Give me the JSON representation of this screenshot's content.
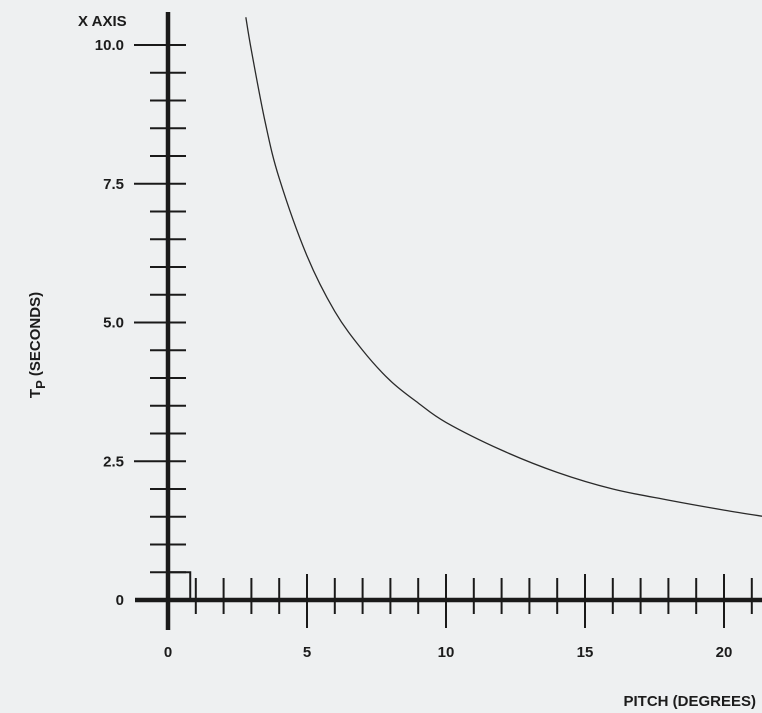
{
  "chart_data": {
    "type": "line",
    "corner_label": "X AXIS",
    "xlabel": "PITCH (DEGREES)",
    "ylabel_main": "T",
    "ylabel_sub": "P",
    "ylabel_rest": " (SECONDS)",
    "xlim": [
      0,
      21.5
    ],
    "ylim": [
      0,
      10.5
    ],
    "x_ticks": [
      0,
      5,
      10,
      15,
      20
    ],
    "x_tick_labels": [
      "0",
      "5",
      "10",
      "15",
      "20"
    ],
    "x_minor_step": 1,
    "y_ticks": [
      0,
      2.5,
      5.0,
      7.5,
      10.0
    ],
    "y_tick_labels": [
      "0",
      "2.5",
      "5.0",
      "7.5",
      "10.0"
    ],
    "y_minor_step": 0.5,
    "grid": false,
    "series": [
      {
        "x": [
          2.8,
          3.0,
          3.5,
          4.0,
          5.0,
          6.0,
          7.0,
          8.0,
          9.0,
          10.0,
          12.0,
          14.0,
          16.0,
          18.0,
          20.0,
          21.5
        ],
        "y": [
          10.5,
          9.9,
          8.6,
          7.6,
          6.2,
          5.2,
          4.5,
          3.95,
          3.55,
          3.2,
          2.7,
          2.3,
          2.0,
          1.8,
          1.62,
          1.5
        ],
        "color": "#2a2a2a"
      }
    ],
    "annotations": [
      {
        "x": 0,
        "y": 0,
        "x2": 0.8,
        "y2": 0.5,
        "shape": "notch"
      }
    ]
  }
}
